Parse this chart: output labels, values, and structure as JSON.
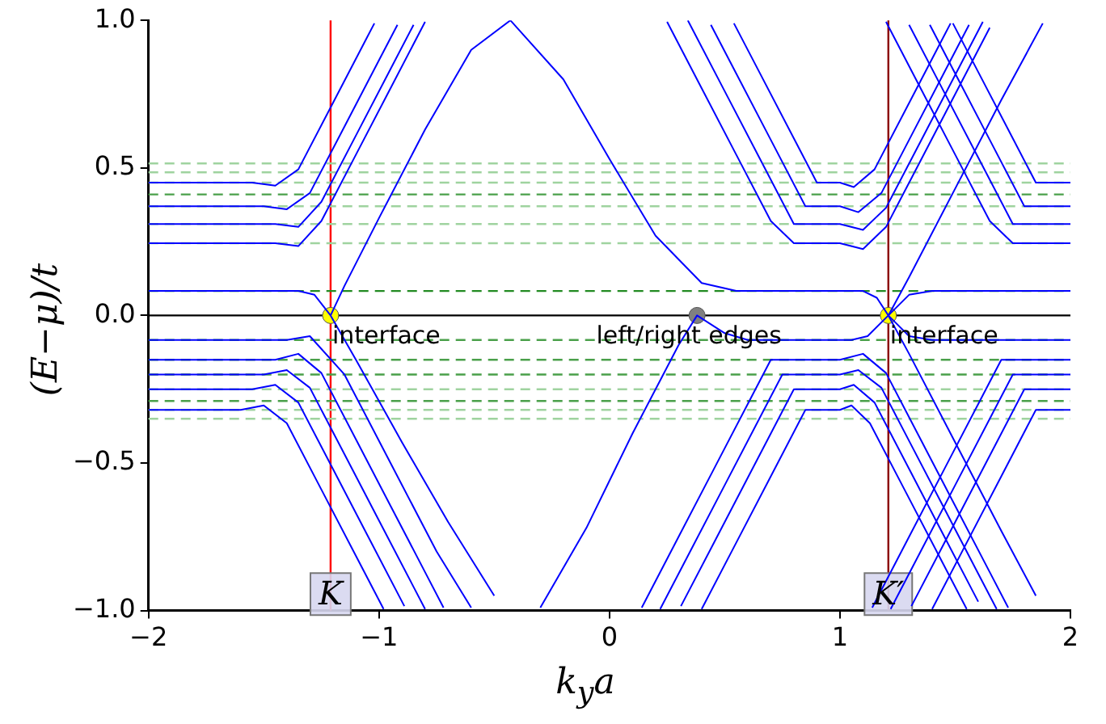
{
  "chart_data": {
    "type": "line",
    "xlabel": "k$_{y}$a",
    "ylabel": "(E−μ)/t",
    "xlim": [
      -2,
      2
    ],
    "ylim": [
      -1,
      1
    ],
    "xticks": [
      {
        "value": -2,
        "label": "−2"
      },
      {
        "value": -1,
        "label": "−1"
      },
      0,
      1,
      2
    ],
    "yticks": [
      {
        "value": -1,
        "label": "−1.0"
      },
      {
        "value": -0.5,
        "label": "−0.5"
      },
      {
        "value": 0,
        "label": "0.0"
      },
      0.5,
      {
        "value": 1,
        "label": "1.0"
      }
    ],
    "grid": false,
    "legend": false,
    "line_style": "solid",
    "series": [
      {
        "color": "#0000ff",
        "x": [
          -2,
          -1.35,
          -1.28,
          -1.21,
          -1.1,
          -0.9,
          -0.7,
          -0.5
        ],
        "values": [
          0.083,
          0.083,
          0.07,
          0,
          -0.15,
          -0.43,
          -0.7,
          -0.95
        ]
      },
      {
        "color": "#0000ff",
        "x": [
          -1.21,
          -1.15,
          -1.0,
          -0.8,
          -0.6,
          -0.43,
          -0.2,
          0,
          0.2,
          0.4,
          0.55,
          1.1,
          1.16,
          1.21,
          1.3,
          1.5,
          1.7,
          1.85
        ],
        "values": [
          0,
          0.1,
          0.33,
          0.63,
          0.9,
          1.0,
          0.8,
          0.53,
          0.27,
          0.11,
          0.083,
          0.083,
          0.06,
          0,
          -0.13,
          -0.43,
          -0.73,
          -0.95
        ]
      },
      {
        "color": "#0000ff",
        "x": [
          -2,
          -1.4,
          -1.3,
          -1.15,
          -0.95,
          -0.75,
          -0.6
        ],
        "values": [
          -0.083,
          -0.083,
          -0.07,
          -0.2,
          -0.5,
          -0.8,
          -0.99
        ]
      },
      {
        "color": "#0000ff",
        "x": [
          -0.3,
          -0.1,
          0.1,
          0.3,
          0.38,
          0.5,
          0.6,
          1.05,
          1.12,
          1.21,
          1.3,
          1.5,
          1.7,
          1.88
        ],
        "values": [
          -0.99,
          -0.72,
          -0.4,
          -0.1,
          0,
          -0.06,
          -0.083,
          -0.083,
          -0.07,
          0,
          0.13,
          0.43,
          0.73,
          0.99
        ]
      },
      {
        "color": "#0000ff",
        "x": [
          1.21,
          1.3,
          1.4,
          2
        ],
        "values": [
          0,
          0.07,
          0.083,
          0.083
        ]
      },
      {
        "color": "#0000ff",
        "x": [
          1.21,
          1.3,
          1.4,
          2
        ],
        "values": [
          0,
          -0.07,
          -0.083,
          -0.083
        ]
      },
      {
        "color": "#0000ff",
        "x": [
          -2,
          -1.45,
          -1.35,
          -1.25,
          -1.1,
          -0.95,
          -0.8
        ],
        "values": [
          0.245,
          0.245,
          0.235,
          0.32,
          0.545,
          0.77,
          0.995
        ]
      },
      {
        "color": "#0000ff",
        "x": [
          0.25,
          0.4,
          0.55,
          0.7,
          0.8,
          1.0,
          1.1,
          1.2,
          1.35,
          1.5,
          1.65
        ],
        "values": [
          0.995,
          0.77,
          0.545,
          0.32,
          0.245,
          0.245,
          0.225,
          0.3,
          0.525,
          0.75,
          0.975
        ]
      },
      {
        "color": "#0000ff",
        "x": [
          1.2,
          1.35,
          1.5,
          1.65,
          1.75,
          2
        ],
        "values": [
          0.995,
          0.77,
          0.545,
          0.32,
          0.245,
          0.245
        ]
      },
      {
        "color": "#0000ff",
        "x": [
          -2,
          -1.45,
          -1.35,
          -1.25,
          -1.1,
          -0.95,
          -0.85
        ],
        "values": [
          0.31,
          0.31,
          0.3,
          0.385,
          0.61,
          0.835,
          0.985
        ]
      },
      {
        "color": "#0000ff",
        "x": [
          0.34,
          0.5,
          0.65,
          0.8,
          1.0,
          1.1,
          1.2,
          1.35,
          1.5,
          1.62
        ],
        "values": [
          1.0,
          0.76,
          0.535,
          0.31,
          0.31,
          0.29,
          0.365,
          0.59,
          0.815,
          0.995
        ]
      },
      {
        "color": "#0000ff",
        "x": [
          1.3,
          1.45,
          1.6,
          1.75,
          2
        ],
        "values": [
          0.985,
          0.76,
          0.535,
          0.31,
          0.31
        ]
      },
      {
        "color": "#0000ff",
        "x": [
          -2,
          -1.5,
          -1.4,
          -1.3,
          -1.15,
          -1.0,
          -0.92
        ],
        "values": [
          0.37,
          0.37,
          0.36,
          0.415,
          0.64,
          0.865,
          0.985
        ]
      },
      {
        "color": "#0000ff",
        "x": [
          0.44,
          0.55,
          0.7,
          0.85,
          1.0,
          1.08,
          1.18,
          1.3,
          1.45,
          1.56
        ],
        "values": [
          0.985,
          0.82,
          0.595,
          0.37,
          0.37,
          0.35,
          0.415,
          0.595,
          0.82,
          0.985
        ]
      },
      {
        "color": "#0000ff",
        "x": [
          1.39,
          1.5,
          1.65,
          1.8,
          2
        ],
        "values": [
          0.985,
          0.82,
          0.595,
          0.37,
          0.37
        ]
      },
      {
        "color": "#0000ff",
        "x": [
          -2,
          -1.55,
          -1.45,
          -1.35,
          -1.2,
          -1.05,
          -1.02
        ],
        "values": [
          0.45,
          0.45,
          0.44,
          0.495,
          0.72,
          0.945,
          0.99
        ]
      },
      {
        "color": "#0000ff",
        "x": [
          0.54,
          0.65,
          0.8,
          0.9,
          1.0,
          1.06,
          1.15,
          1.3,
          1.45,
          1.48
        ],
        "values": [
          0.99,
          0.825,
          0.6,
          0.45,
          0.45,
          0.435,
          0.495,
          0.72,
          0.945,
          0.99
        ]
      },
      {
        "color": "#0000ff",
        "x": [
          1.49,
          1.6,
          1.75,
          1.85,
          2
        ],
        "values": [
          0.99,
          0.825,
          0.6,
          0.45,
          0.45
        ]
      },
      {
        "color": "#0000ff",
        "x": [
          -2,
          -1.45,
          -1.35,
          -1.25,
          -1.1,
          -0.95,
          -0.8,
          -0.72
        ],
        "values": [
          -0.15,
          -0.15,
          -0.13,
          -0.195,
          -0.42,
          -0.645,
          -0.87,
          -0.99
        ]
      },
      {
        "color": "#0000ff",
        "x": [
          0.14,
          0.3,
          0.45,
          0.6,
          0.7,
          1.0,
          1.1,
          1.2,
          1.35,
          1.5,
          1.65,
          1.73
        ],
        "values": [
          -0.99,
          -0.75,
          -0.525,
          -0.3,
          -0.15,
          -0.15,
          -0.13,
          -0.195,
          -0.42,
          -0.645,
          -0.87,
          -0.99
        ]
      },
      {
        "color": "#0000ff",
        "x": [
          1.14,
          1.3,
          1.45,
          1.6,
          1.7,
          2
        ],
        "values": [
          -0.99,
          -0.75,
          -0.525,
          -0.3,
          -0.15,
          -0.15
        ]
      },
      {
        "color": "#0000ff",
        "x": [
          -2,
          -1.5,
          -1.4,
          -1.3,
          -1.15,
          -1.0,
          -0.85,
          -0.8
        ],
        "values": [
          -0.2,
          -0.2,
          -0.185,
          -0.245,
          -0.47,
          -0.695,
          -0.92,
          -0.995
        ]
      },
      {
        "color": "#0000ff",
        "x": [
          0.22,
          0.35,
          0.5,
          0.65,
          0.75,
          1.0,
          1.08,
          1.18,
          1.3,
          1.45,
          1.6,
          1.68
        ],
        "values": [
          -0.995,
          -0.8,
          -0.575,
          -0.35,
          -0.2,
          -0.2,
          -0.185,
          -0.245,
          -0.425,
          -0.65,
          -0.875,
          -0.995
        ]
      },
      {
        "color": "#0000ff",
        "x": [
          1.22,
          1.35,
          1.5,
          1.65,
          1.75,
          2
        ],
        "values": [
          -0.995,
          -0.8,
          -0.575,
          -0.35,
          -0.2,
          -0.2
        ]
      },
      {
        "color": "#0000ff",
        "x": [
          -2,
          -1.55,
          -1.45,
          -1.35,
          -1.2,
          -1.05,
          -0.89
        ],
        "values": [
          -0.25,
          -0.25,
          -0.235,
          -0.295,
          -0.52,
          -0.745,
          -0.985
        ]
      },
      {
        "color": "#0000ff",
        "x": [
          0.31,
          0.45,
          0.6,
          0.7,
          0.8,
          1.0,
          1.06,
          1.15,
          1.3,
          1.45,
          1.6
        ],
        "values": [
          -0.985,
          -0.775,
          -0.55,
          -0.4,
          -0.25,
          -0.25,
          -0.235,
          -0.295,
          -0.52,
          -0.745,
          -0.97
        ]
      },
      {
        "color": "#0000ff",
        "x": [
          1.31,
          1.45,
          1.6,
          1.7,
          1.8,
          2
        ],
        "values": [
          -0.985,
          -0.775,
          -0.55,
          -0.4,
          -0.25,
          -0.25
        ]
      },
      {
        "color": "#0000ff",
        "x": [
          -2,
          -1.6,
          -1.5,
          -1.4,
          -1.25,
          -1.1,
          -0.98
        ],
        "values": [
          -0.32,
          -0.32,
          -0.305,
          -0.365,
          -0.59,
          -0.815,
          -0.995
        ]
      },
      {
        "color": "#0000ff",
        "x": [
          0.4,
          0.55,
          0.7,
          0.85,
          1.0,
          1.05,
          1.13,
          1.28,
          1.43,
          1.55
        ],
        "values": [
          -0.995,
          -0.77,
          -0.545,
          -0.32,
          -0.32,
          -0.305,
          -0.365,
          -0.59,
          -0.815,
          -0.995
        ]
      },
      {
        "color": "#0000ff",
        "x": [
          1.4,
          1.55,
          1.7,
          1.85,
          2
        ],
        "values": [
          -0.995,
          -0.77,
          -0.545,
          -0.32,
          -0.32
        ]
      },
      {
        "type": "scatter",
        "marker": "circle",
        "x": [
          -1.21,
          0.38,
          1.21
        ],
        "values": [
          0,
          0,
          0
        ],
        "colors": [
          "#ffff00",
          "#808080",
          "#ffff00"
        ]
      }
    ],
    "ref_lines": [
      {
        "axis": "y",
        "value": 0,
        "color": "#000000",
        "line_style": "solid"
      },
      {
        "axis": "x",
        "value": -1.21,
        "color": "#ff0000",
        "line_style": "solid"
      },
      {
        "axis": "x",
        "value": 1.21,
        "color": "#8b0000",
        "line_style": "solid"
      },
      {
        "axis": "y",
        "value": 0.083,
        "color": "#228b22",
        "line_style": "dashed"
      },
      {
        "axis": "y",
        "value": 0.245,
        "color": "#9fd39f",
        "line_style": "dashed"
      },
      {
        "axis": "y",
        "value": 0.31,
        "color": "#9fd39f",
        "line_style": "dashed"
      },
      {
        "axis": "y",
        "value": 0.37,
        "color": "#9fd39f",
        "line_style": "dashed"
      },
      {
        "axis": "y",
        "value": 0.41,
        "color": "#4aa04a",
        "line_style": "dashed"
      },
      {
        "axis": "y",
        "value": 0.45,
        "color": "#9fd39f",
        "line_style": "dashed"
      },
      {
        "axis": "y",
        "value": 0.485,
        "color": "#9fd39f",
        "line_style": "dashed"
      },
      {
        "axis": "y",
        "value": 0.515,
        "color": "#9fd39f",
        "line_style": "dashed"
      },
      {
        "axis": "y",
        "value": -0.083,
        "color": "#4aa04a",
        "line_style": "dashed"
      },
      {
        "axis": "y",
        "value": -0.15,
        "color": "#4aa04a",
        "line_style": "dashed"
      },
      {
        "axis": "y",
        "value": -0.2,
        "color": "#4aa04a",
        "line_style": "dashed"
      },
      {
        "axis": "y",
        "value": -0.25,
        "color": "#9fd39f",
        "line_style": "dashed"
      },
      {
        "axis": "y",
        "value": -0.29,
        "color": "#4aa04a",
        "line_style": "dashed"
      },
      {
        "axis": "y",
        "value": -0.32,
        "color": "#9fd39f",
        "line_style": "dashed"
      },
      {
        "axis": "y",
        "value": -0.35,
        "color": "#9fd39f",
        "line_style": "dashed"
      }
    ],
    "annotations": [
      {
        "text": "interface",
        "x": -1.21,
        "y": 0
      },
      {
        "text": "left/right edges",
        "x": 0.38,
        "y": 0
      },
      {
        "text": "interface",
        "x": 1.21,
        "y": 0
      },
      {
        "text": "K",
        "x": -1.21,
        "y": -0.95
      },
      {
        "text": "K′",
        "x": 1.21,
        "y": -0.95
      }
    ]
  }
}
